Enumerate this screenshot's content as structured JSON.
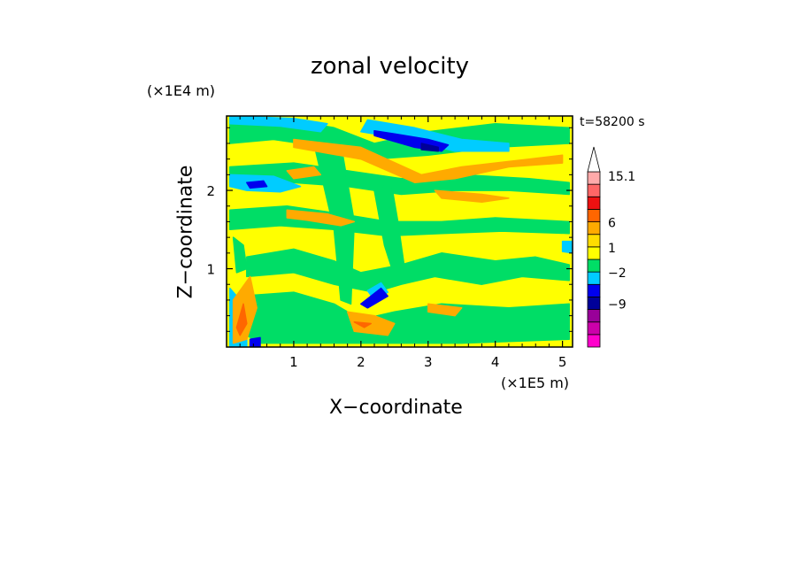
{
  "chart_data": {
    "type": "heatmap",
    "title": "zonal velocity",
    "time_label": "t=58200 s",
    "xlabel": "X−coordinate",
    "ylabel": "Z−coordinate",
    "x_unit": "(×1E5 m)",
    "y_unit": "(×1E4 m)",
    "xlim": [
      0,
      5.15
    ],
    "ylim": [
      0,
      2.95
    ],
    "x_ticks": [
      {
        "value": 1,
        "label": "1"
      },
      {
        "value": 2,
        "label": "2"
      },
      {
        "value": 3,
        "label": "3"
      },
      {
        "value": 4,
        "label": "4"
      },
      {
        "value": 5,
        "label": "5"
      }
    ],
    "y_ticks": [
      {
        "value": 1,
        "label": "1"
      },
      {
        "value": 2,
        "label": "2"
      }
    ],
    "colorbar": {
      "levels": [
        {
          "color": "#ff00cc"
        },
        {
          "color": "#cc00aa"
        },
        {
          "color": "#990099"
        },
        {
          "color": "#000099"
        },
        {
          "color": "#0000ee"
        },
        {
          "color": "#00ccff"
        },
        {
          "color": "#00dd66"
        },
        {
          "color": "#ffff00"
        },
        {
          "color": "#ffdd00"
        },
        {
          "color": "#ffaa00"
        },
        {
          "color": "#ff6600"
        },
        {
          "color": "#ee1111"
        },
        {
          "color": "#ff6666"
        },
        {
          "color": "#ffaaaa"
        },
        {
          "color": "#ffffff"
        }
      ],
      "labels": [
        {
          "text": "15.1",
          "value": 15.1
        },
        {
          "text": "6",
          "value": 6
        },
        {
          "text": "1",
          "value": 1
        },
        {
          "text": "−2",
          "value": -2
        },
        {
          "text": "−9",
          "value": -9
        }
      ]
    },
    "field": {
      "background": "#ffff00",
      "patches": [
        {
          "color": "#00dd66",
          "points": [
            [
              0.05,
              2.85
            ],
            [
              0.8,
              2.92
            ],
            [
              1.6,
              2.8
            ],
            [
              2.2,
              2.6
            ],
            [
              3.0,
              2.75
            ],
            [
              4.0,
              2.85
            ],
            [
              5.1,
              2.8
            ],
            [
              5.1,
              2.6
            ],
            [
              4.0,
              2.55
            ],
            [
              3.0,
              2.45
            ],
            [
              2.2,
              2.4
            ],
            [
              1.5,
              2.55
            ],
            [
              0.7,
              2.65
            ],
            [
              0.05,
              2.6
            ]
          ]
        },
        {
          "color": "#00dd66",
          "points": [
            [
              0.05,
              2.3
            ],
            [
              1.0,
              2.35
            ],
            [
              1.8,
              2.25
            ],
            [
              2.6,
              2.15
            ],
            [
              3.5,
              2.2
            ],
            [
              4.5,
              2.15
            ],
            [
              5.1,
              2.1
            ],
            [
              5.1,
              1.95
            ],
            [
              4.2,
              2.0
            ],
            [
              3.4,
              2.0
            ],
            [
              2.6,
              1.95
            ],
            [
              1.8,
              2.05
            ],
            [
              1.0,
              2.1
            ],
            [
              0.05,
              2.05
            ]
          ]
        },
        {
          "color": "#00dd66",
          "points": [
            [
              0.05,
              1.75
            ],
            [
              0.9,
              1.8
            ],
            [
              1.7,
              1.7
            ],
            [
              2.4,
              1.6
            ],
            [
              3.2,
              1.6
            ],
            [
              4.0,
              1.65
            ],
            [
              5.1,
              1.6
            ],
            [
              5.1,
              1.45
            ],
            [
              4.1,
              1.48
            ],
            [
              3.2,
              1.45
            ],
            [
              2.4,
              1.42
            ],
            [
              1.6,
              1.5
            ],
            [
              0.8,
              1.55
            ],
            [
              0.05,
              1.5
            ]
          ]
        },
        {
          "color": "#00dd66",
          "points": [
            [
              0.3,
              1.15
            ],
            [
              1.0,
              1.25
            ],
            [
              1.6,
              1.1
            ],
            [
              2.0,
              0.95
            ],
            [
              2.6,
              1.05
            ],
            [
              3.2,
              1.2
            ],
            [
              4.0,
              1.1
            ],
            [
              4.6,
              1.15
            ],
            [
              5.1,
              1.05
            ],
            [
              5.1,
              0.85
            ],
            [
              4.4,
              0.9
            ],
            [
              3.8,
              0.8
            ],
            [
              3.1,
              0.9
            ],
            [
              2.6,
              0.8
            ],
            [
              2.2,
              0.7
            ],
            [
              1.6,
              0.8
            ],
            [
              1.0,
              0.95
            ],
            [
              0.3,
              0.9
            ]
          ]
        },
        {
          "color": "#00dd66",
          "points": [
            [
              0.2,
              0.65
            ],
            [
              1.0,
              0.7
            ],
            [
              1.6,
              0.55
            ],
            [
              2.0,
              0.35
            ],
            [
              2.5,
              0.45
            ],
            [
              3.2,
              0.55
            ],
            [
              4.2,
              0.5
            ],
            [
              5.1,
              0.55
            ],
            [
              5.1,
              0.1
            ],
            [
              3.5,
              0.05
            ],
            [
              2.6,
              0.05
            ],
            [
              1.4,
              0.05
            ],
            [
              0.5,
              0.05
            ],
            [
              0.2,
              0.2
            ]
          ]
        },
        {
          "color": "#00dd66",
          "points": [
            [
              1.3,
              2.6
            ],
            [
              1.6,
              1.5
            ],
            [
              1.7,
              0.6
            ],
            [
              1.85,
              0.55
            ],
            [
              1.9,
              1.6
            ],
            [
              1.7,
              2.6
            ]
          ]
        },
        {
          "color": "#00dd66",
          "points": [
            [
              2.2,
              2.0
            ],
            [
              2.35,
              1.3
            ],
            [
              2.5,
              0.9
            ],
            [
              2.65,
              1.0
            ],
            [
              2.55,
              1.6
            ],
            [
              2.45,
              2.1
            ]
          ]
        },
        {
          "color": "#00dd66",
          "points": [
            [
              0.1,
              1.4
            ],
            [
              0.25,
              1.3
            ],
            [
              0.3,
              1.0
            ],
            [
              0.15,
              0.95
            ]
          ]
        },
        {
          "color": "#00ccff",
          "points": [
            [
              0.05,
              2.95
            ],
            [
              1.0,
              2.92
            ],
            [
              1.5,
              2.85
            ],
            [
              1.4,
              2.75
            ],
            [
              0.8,
              2.82
            ],
            [
              0.05,
              2.85
            ]
          ]
        },
        {
          "color": "#00ccff",
          "points": [
            [
              2.1,
              2.9
            ],
            [
              2.8,
              2.8
            ],
            [
              3.5,
              2.65
            ],
            [
              4.2,
              2.6
            ],
            [
              4.2,
              2.5
            ],
            [
              3.4,
              2.5
            ],
            [
              2.7,
              2.65
            ],
            [
              2.0,
              2.75
            ]
          ]
        },
        {
          "color": "#00ccff",
          "points": [
            [
              0.05,
              2.2
            ],
            [
              0.7,
              2.18
            ],
            [
              1.1,
              2.05
            ],
            [
              0.8,
              1.98
            ],
            [
              0.3,
              2.0
            ],
            [
              0.05,
              2.05
            ]
          ]
        },
        {
          "color": "#00ccff",
          "points": [
            [
              0.05,
              0.75
            ],
            [
              0.2,
              0.6
            ],
            [
              0.3,
              0.3
            ],
            [
              0.3,
              0.0
            ],
            [
              0.05,
              0.0
            ]
          ]
        },
        {
          "color": "#00ccff",
          "points": [
            [
              2.1,
              0.72
            ],
            [
              2.3,
              0.82
            ],
            [
              2.4,
              0.7
            ],
            [
              2.2,
              0.6
            ]
          ]
        },
        {
          "color": "#00ccff",
          "points": [
            [
              5.0,
              1.35
            ],
            [
              5.15,
              1.35
            ],
            [
              5.15,
              1.2
            ],
            [
              5.0,
              1.22
            ]
          ]
        },
        {
          "color": "#0000ee",
          "points": [
            [
              2.2,
              2.7
            ],
            [
              2.8,
              2.55
            ],
            [
              3.2,
              2.5
            ],
            [
              3.3,
              2.58
            ],
            [
              3.0,
              2.65
            ],
            [
              2.5,
              2.72
            ],
            [
              2.2,
              2.76
            ]
          ]
        },
        {
          "color": "#0000ee",
          "points": [
            [
              0.3,
              2.1
            ],
            [
              0.55,
              2.12
            ],
            [
              0.6,
              2.05
            ],
            [
              0.35,
              2.03
            ]
          ]
        },
        {
          "color": "#0000ee",
          "points": [
            [
              2.0,
              0.55
            ],
            [
              2.3,
              0.75
            ],
            [
              2.4,
              0.65
            ],
            [
              2.1,
              0.5
            ]
          ]
        },
        {
          "color": "#0000ee",
          "points": [
            [
              0.35,
              0.1
            ],
            [
              0.5,
              0.12
            ],
            [
              0.5,
              0.0
            ],
            [
              0.35,
              0.0
            ]
          ]
        },
        {
          "color": "#0000ee",
          "points": [
            [
              0.1,
              0.35
            ],
            [
              0.2,
              0.5
            ],
            [
              0.25,
              0.3
            ],
            [
              0.15,
              0.2
            ]
          ]
        },
        {
          "color": "#000099",
          "points": [
            [
              2.9,
              2.6
            ],
            [
              3.15,
              2.55
            ],
            [
              3.15,
              2.5
            ],
            [
              2.9,
              2.52
            ]
          ]
        },
        {
          "color": "#ffaa00",
          "points": [
            [
              1.0,
              2.65
            ],
            [
              2.0,
              2.55
            ],
            [
              2.9,
              2.2
            ],
            [
              3.5,
              2.3
            ],
            [
              4.5,
              2.4
            ],
            [
              5.0,
              2.45
            ],
            [
              5.0,
              2.35
            ],
            [
              4.2,
              2.3
            ],
            [
              3.4,
              2.15
            ],
            [
              2.8,
              2.1
            ],
            [
              2.0,
              2.4
            ],
            [
              1.0,
              2.55
            ]
          ]
        },
        {
          "color": "#ffaa00",
          "points": [
            [
              0.9,
              1.75
            ],
            [
              1.5,
              1.7
            ],
            [
              1.9,
              1.6
            ],
            [
              1.7,
              1.55
            ],
            [
              1.2,
              1.62
            ],
            [
              0.9,
              1.65
            ]
          ]
        },
        {
          "color": "#ffaa00",
          "points": [
            [
              3.1,
              2.0
            ],
            [
              3.8,
              1.95
            ],
            [
              4.2,
              1.9
            ],
            [
              3.8,
              1.85
            ],
            [
              3.2,
              1.9
            ]
          ]
        },
        {
          "color": "#ffaa00",
          "points": [
            [
              0.1,
              0.6
            ],
            [
              0.35,
              0.9
            ],
            [
              0.45,
              0.5
            ],
            [
              0.3,
              0.1
            ],
            [
              0.1,
              0.05
            ]
          ]
        },
        {
          "color": "#ffaa00",
          "points": [
            [
              1.8,
              0.45
            ],
            [
              2.2,
              0.4
            ],
            [
              2.5,
              0.3
            ],
            [
              2.4,
              0.15
            ],
            [
              1.9,
              0.2
            ]
          ]
        },
        {
          "color": "#ffaa00",
          "points": [
            [
              0.9,
              2.25
            ],
            [
              1.3,
              2.3
            ],
            [
              1.4,
              2.2
            ],
            [
              1.0,
              2.15
            ]
          ]
        },
        {
          "color": "#ffaa00",
          "points": [
            [
              3.0,
              0.55
            ],
            [
              3.5,
              0.5
            ],
            [
              3.4,
              0.4
            ],
            [
              3.0,
              0.45
            ]
          ]
        },
        {
          "color": "#ff6600",
          "points": [
            [
              0.15,
              0.25
            ],
            [
              0.25,
              0.55
            ],
            [
              0.3,
              0.3
            ],
            [
              0.2,
              0.15
            ]
          ]
        },
        {
          "color": "#ff6600",
          "points": [
            [
              1.9,
              0.32
            ],
            [
              2.15,
              0.3
            ],
            [
              2.05,
              0.25
            ]
          ]
        }
      ]
    }
  }
}
